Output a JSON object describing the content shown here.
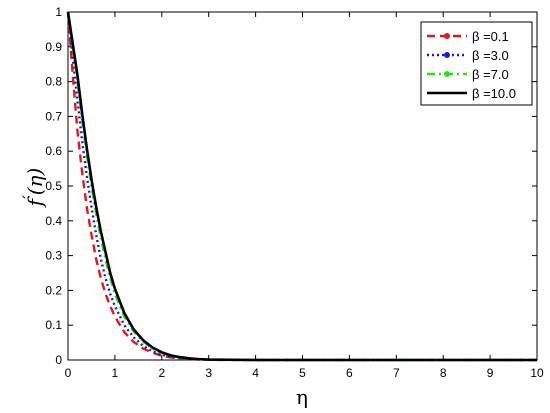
{
  "chart_data": {
    "type": "line",
    "title": "",
    "xlabel": "η",
    "ylabel_main": "f",
    "ylabel_prime": "′",
    "ylabel_arg": "(η)",
    "xlim": [
      0,
      10
    ],
    "ylim": [
      0,
      1
    ],
    "xticks": [
      "0",
      "1",
      "2",
      "3",
      "4",
      "5",
      "6",
      "7",
      "8",
      "9",
      "10"
    ],
    "yticks": [
      "0",
      "0.1",
      "0.2",
      "0.3",
      "0.4",
      "0.5",
      "0.6",
      "0.7",
      "0.8",
      "0.9",
      "1"
    ],
    "grid": false,
    "legend_position": "top-right",
    "series": [
      {
        "name": "β =0.1",
        "color": "#e8161b",
        "dash": "dashed",
        "marker": "circle",
        "x": [
          0,
          0.1,
          0.2,
          0.3,
          0.4,
          0.5,
          0.6,
          0.7,
          0.8,
          0.9,
          1.0,
          1.2,
          1.4,
          1.6,
          1.8,
          2.0,
          2.2,
          2.4,
          2.6,
          2.8,
          3.0,
          4,
          5,
          6,
          7,
          8,
          9,
          10
        ],
        "y": [
          1.0,
          0.82,
          0.66,
          0.54,
          0.44,
          0.36,
          0.29,
          0.235,
          0.19,
          0.155,
          0.125,
          0.08,
          0.052,
          0.033,
          0.021,
          0.012,
          0.007,
          0.004,
          0.002,
          0.001,
          0.0005,
          0,
          0,
          0,
          0,
          0,
          0,
          0
        ]
      },
      {
        "name": "β =3.0",
        "color": "#1a1adf",
        "dash": "dotted",
        "marker": "circle",
        "x": [
          0,
          0.1,
          0.2,
          0.3,
          0.4,
          0.5,
          0.6,
          0.7,
          0.8,
          0.9,
          1.0,
          1.2,
          1.4,
          1.6,
          1.8,
          2.0,
          2.2,
          2.4,
          2.6,
          2.8,
          3.0,
          4,
          5,
          6,
          7,
          8,
          9,
          10
        ],
        "y": [
          1.0,
          0.87,
          0.75,
          0.63,
          0.53,
          0.44,
          0.36,
          0.29,
          0.235,
          0.19,
          0.155,
          0.1,
          0.065,
          0.041,
          0.025,
          0.015,
          0.009,
          0.005,
          0.003,
          0.0015,
          0.0008,
          0,
          0,
          0,
          0,
          0,
          0,
          0
        ]
      },
      {
        "name": "β =7.0",
        "color": "#2adf1a",
        "dash": "dashdot",
        "marker": "circle",
        "x": [
          0,
          0.1,
          0.2,
          0.3,
          0.4,
          0.5,
          0.6,
          0.7,
          0.8,
          0.9,
          1.0,
          1.2,
          1.4,
          1.6,
          1.8,
          2.0,
          2.2,
          2.4,
          2.6,
          2.8,
          3.0,
          4,
          5,
          6,
          7,
          8,
          9,
          10
        ],
        "y": [
          1.0,
          0.9,
          0.8,
          0.69,
          0.59,
          0.5,
          0.42,
          0.35,
          0.29,
          0.235,
          0.19,
          0.125,
          0.082,
          0.053,
          0.033,
          0.02,
          0.012,
          0.007,
          0.004,
          0.002,
          0.001,
          0,
          0,
          0,
          0,
          0,
          0,
          0
        ]
      },
      {
        "name": "β =10.0",
        "color": "#000000",
        "dash": "solid",
        "marker": "none",
        "x": [
          0,
          0.1,
          0.2,
          0.3,
          0.4,
          0.5,
          0.6,
          0.7,
          0.8,
          0.9,
          1.0,
          1.2,
          1.4,
          1.6,
          1.8,
          2.0,
          2.2,
          2.4,
          2.6,
          2.8,
          3.0,
          4,
          5,
          6,
          7,
          8,
          9,
          10
        ],
        "y": [
          1.0,
          0.91,
          0.82,
          0.71,
          0.61,
          0.52,
          0.44,
          0.37,
          0.31,
          0.25,
          0.205,
          0.135,
          0.088,
          0.057,
          0.036,
          0.022,
          0.013,
          0.008,
          0.0045,
          0.0025,
          0.0012,
          0,
          0,
          0,
          0,
          0,
          0,
          0
        ]
      }
    ]
  }
}
